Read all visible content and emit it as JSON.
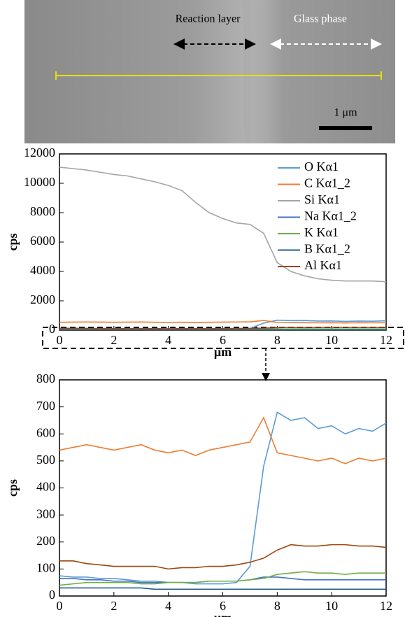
{
  "image": {
    "reaction_layer": "Reaction layer",
    "glass_phase": "Glass phase",
    "scale_bar": "1 μm"
  },
  "chart_data": [
    {
      "type": "line",
      "ylabel": "cps",
      "xlabel": "μm",
      "x": [
        0,
        0.5,
        1,
        1.5,
        2,
        2.5,
        3,
        3.5,
        4,
        4.5,
        5,
        5.5,
        6,
        6.5,
        7,
        7.5,
        8,
        8.5,
        9,
        9.5,
        10,
        10.5,
        11,
        11.5,
        12
      ],
      "xlim": [
        0,
        12
      ],
      "xticks": [
        0,
        2,
        4,
        6,
        8,
        10,
        12
      ],
      "ylim": [
        0,
        12000
      ],
      "yticks": [
        0,
        2000,
        4000,
        6000,
        8000,
        10000,
        12000
      ],
      "legend": "upper right",
      "series": [
        {
          "name": "O Kα1",
          "color": "#5b9bd5",
          "values": [
            75,
            70,
            70,
            65,
            65,
            60,
            55,
            55,
            50,
            50,
            45,
            45,
            45,
            50,
            110,
            480,
            680,
            650,
            660,
            620,
            630,
            600,
            620,
            610,
            640
          ]
        },
        {
          "name": "C Kα1_2",
          "color": "#ed7d31",
          "values": [
            540,
            550,
            560,
            550,
            540,
            550,
            560,
            540,
            530,
            540,
            520,
            540,
            550,
            560,
            570,
            660,
            530,
            520,
            510,
            500,
            510,
            490,
            510,
            500,
            510
          ]
        },
        {
          "name": "Si Kα1",
          "color": "#a5a5a5",
          "values": [
            11100,
            11000,
            10900,
            10750,
            10600,
            10500,
            10300,
            10100,
            9850,
            9500,
            8700,
            8000,
            7600,
            7300,
            7200,
            6600,
            4600,
            4000,
            3700,
            3500,
            3400,
            3350,
            3350,
            3350,
            3300
          ]
        },
        {
          "name": "Na Kα1_2",
          "color": "#4472c4",
          "values": [
            65,
            65,
            60,
            60,
            55,
            55,
            50,
            50,
            50,
            50,
            50,
            55,
            55,
            55,
            60,
            70,
            70,
            65,
            60,
            60,
            60,
            60,
            60,
            60,
            60
          ]
        },
        {
          "name": "K Kα1",
          "color": "#70ad47",
          "values": [
            40,
            45,
            50,
            50,
            50,
            50,
            45,
            45,
            50,
            50,
            50,
            55,
            55,
            55,
            60,
            65,
            80,
            85,
            90,
            85,
            85,
            80,
            85,
            85,
            85
          ]
        },
        {
          "name": "B Kα1_2",
          "color": "#255e91",
          "values": [
            30,
            30,
            30,
            30,
            30,
            30,
            30,
            25,
            25,
            25,
            25,
            25,
            25,
            25,
            25,
            25,
            25,
            25,
            25,
            25,
            25,
            25,
            25,
            25,
            25
          ]
        },
        {
          "name": "Al Kα1",
          "color": "#9e480e",
          "values": [
            130,
            130,
            120,
            115,
            110,
            110,
            110,
            110,
            100,
            105,
            105,
            110,
            110,
            115,
            125,
            140,
            170,
            190,
            185,
            185,
            190,
            190,
            185,
            185,
            180
          ]
        }
      ]
    },
    {
      "type": "line",
      "ylabel": "cps",
      "xlabel": "μm",
      "x": [
        0,
        0.5,
        1,
        1.5,
        2,
        2.5,
        3,
        3.5,
        4,
        4.5,
        5,
        5.5,
        6,
        6.5,
        7,
        7.5,
        8,
        8.5,
        9,
        9.5,
        10,
        10.5,
        11,
        11.5,
        12
      ],
      "xlim": [
        0,
        12
      ],
      "xticks": [
        0,
        2,
        4,
        6,
        8,
        10,
        12
      ],
      "ylim": [
        0,
        800
      ],
      "yticks": [
        0,
        100,
        200,
        300,
        400,
        500,
        600,
        700,
        800
      ],
      "series": [
        {
          "color": "#5b9bd5",
          "values": [
            75,
            70,
            70,
            65,
            65,
            60,
            55,
            55,
            50,
            50,
            45,
            45,
            45,
            50,
            110,
            480,
            680,
            650,
            660,
            620,
            630,
            600,
            620,
            610,
            640
          ]
        },
        {
          "color": "#ed7d31",
          "values": [
            540,
            550,
            560,
            550,
            540,
            550,
            560,
            540,
            530,
            540,
            520,
            540,
            550,
            560,
            570,
            660,
            530,
            520,
            510,
            500,
            510,
            490,
            510,
            500,
            510
          ]
        },
        {
          "color": "#4472c4",
          "values": [
            65,
            65,
            60,
            60,
            55,
            55,
            50,
            50,
            50,
            50,
            50,
            55,
            55,
            55,
            60,
            70,
            70,
            65,
            60,
            60,
            60,
            60,
            60,
            60,
            60
          ]
        },
        {
          "color": "#70ad47",
          "values": [
            40,
            45,
            50,
            50,
            50,
            50,
            45,
            45,
            50,
            50,
            50,
            55,
            55,
            55,
            60,
            65,
            80,
            85,
            90,
            85,
            85,
            80,
            85,
            85,
            85
          ]
        },
        {
          "color": "#255e91",
          "values": [
            30,
            30,
            30,
            30,
            30,
            30,
            30,
            25,
            25,
            25,
            25,
            25,
            25,
            25,
            25,
            25,
            25,
            25,
            25,
            25,
            25,
            25,
            25,
            25,
            25
          ]
        },
        {
          "color": "#9e480e",
          "values": [
            130,
            130,
            120,
            115,
            110,
            110,
            110,
            110,
            100,
            105,
            105,
            110,
            110,
            115,
            125,
            140,
            170,
            190,
            185,
            185,
            190,
            190,
            185,
            185,
            180
          ]
        }
      ]
    }
  ]
}
